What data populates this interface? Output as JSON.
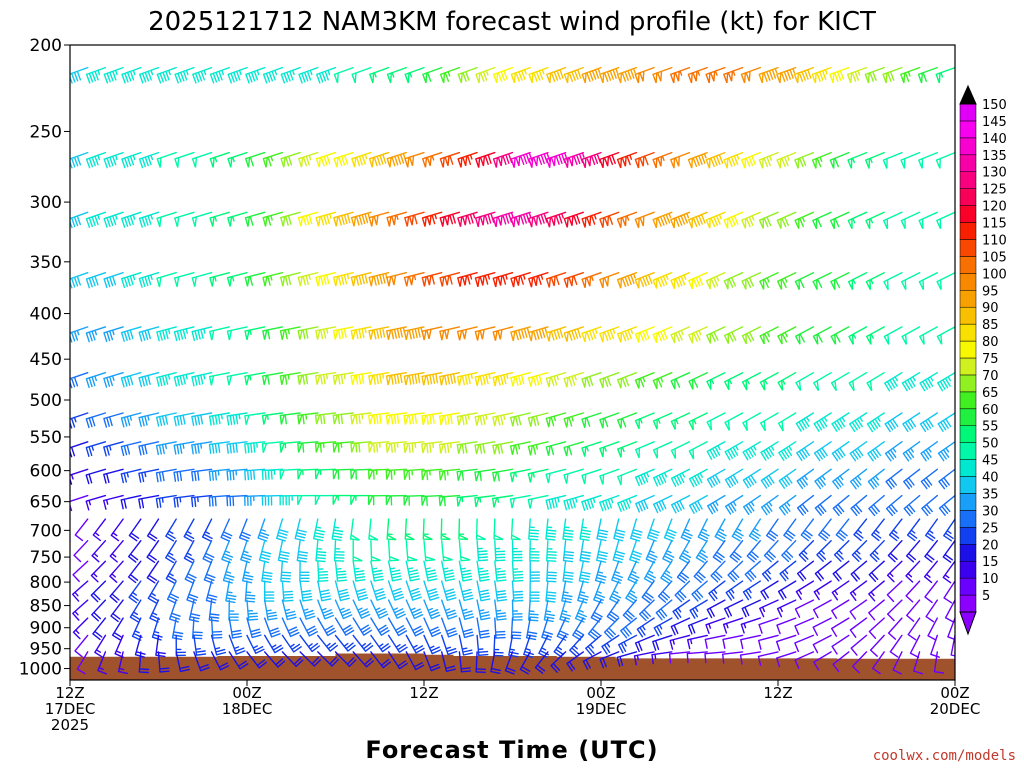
{
  "chart_data": {
    "type": "wind_profile",
    "title": "2025121712 NAM3KM forecast wind profile (kt) for KICT",
    "xlabel": "Forecast Time (UTC)",
    "credit": "coolwx.com/models",
    "yaxis": {
      "label": "",
      "ticks": [
        200,
        250,
        300,
        350,
        400,
        450,
        500,
        550,
        600,
        650,
        700,
        750,
        800,
        850,
        900,
        950,
        1000
      ],
      "range": [
        1030,
        200
      ],
      "scale": "log-pressure"
    },
    "xaxis": {
      "range_hours": [
        0,
        60
      ],
      "ticks": [
        {
          "hour": 0,
          "lines": [
            "12Z",
            "17DEC",
            "2025"
          ]
        },
        {
          "hour": 12,
          "lines": [
            "00Z",
            "18DEC"
          ]
        },
        {
          "hour": 24,
          "lines": [
            "12Z"
          ]
        },
        {
          "hour": 36,
          "lines": [
            "00Z",
            "19DEC"
          ]
        },
        {
          "hour": 48,
          "lines": [
            "12Z"
          ]
        },
        {
          "hour": 60,
          "lines": [
            "00Z",
            "20DEC"
          ]
        }
      ]
    },
    "colorbar": {
      "levels": [
        5,
        10,
        15,
        20,
        25,
        30,
        35,
        40,
        45,
        50,
        55,
        60,
        65,
        70,
        75,
        80,
        85,
        90,
        95,
        100,
        105,
        110,
        115,
        120,
        125,
        130,
        135,
        140,
        145,
        150
      ],
      "colors": [
        "#8c00ff",
        "#6a00ff",
        "#3c00f0",
        "#1c10e8",
        "#1040f0",
        "#1870f8",
        "#18a0f8",
        "#10c8f0",
        "#00e8d0",
        "#00f8a8",
        "#00f878",
        "#20f040",
        "#40f020",
        "#90f020",
        "#d0f020",
        "#f8f800",
        "#f8e000",
        "#f8c000",
        "#f8a000",
        "#f88800",
        "#f87000",
        "#f84800",
        "#f82000",
        "#f80028",
        "#f80058",
        "#f80080",
        "#f800a8",
        "#f800d0",
        "#f800f0",
        "#e000f8"
      ]
    },
    "terrain_color": "#a0522d",
    "surface_pressure_hpa": [
      {
        "hour": 0,
        "p": 970
      },
      {
        "hour": 10,
        "p": 968
      },
      {
        "hour": 18,
        "p": 962
      },
      {
        "hour": 24,
        "p": 965
      },
      {
        "hour": 26,
        "p": 968
      },
      {
        "hour": 33,
        "p": 970
      },
      {
        "hour": 37,
        "p": 974
      },
      {
        "hour": 48,
        "p": 974
      },
      {
        "hour": 52,
        "p": 975
      },
      {
        "hour": 60,
        "p": 968
      }
    ],
    "wind_time_step_hours": 1.2,
    "wind_levels_hpa": [
      212,
      264,
      308,
      360,
      414,
      466,
      517,
      557,
      598,
      640,
      680,
      719,
      758,
      798,
      838,
      878,
      918,
      958,
      998
    ],
    "wind_speed_kt_by_level": [
      [
        40,
        45,
        45,
        45,
        45,
        45,
        45,
        50,
        55,
        60,
        75,
        85,
        90,
        95,
        100,
        105,
        105,
        95,
        85,
        75,
        65,
        55
      ],
      [
        40,
        45,
        45,
        50,
        55,
        65,
        75,
        85,
        95,
        105,
        120,
        140,
        140,
        120,
        110,
        95,
        85,
        75,
        65,
        55,
        50,
        50
      ],
      [
        40,
        45,
        45,
        50,
        55,
        65,
        80,
        95,
        105,
        115,
        130,
        135,
        125,
        110,
        100,
        90,
        80,
        70,
        60,
        55,
        50,
        50
      ],
      [
        40,
        40,
        45,
        50,
        55,
        65,
        75,
        90,
        100,
        110,
        115,
        115,
        110,
        100,
        90,
        80,
        70,
        65,
        60,
        55,
        50,
        50
      ],
      [
        35,
        35,
        40,
        45,
        50,
        60,
        70,
        85,
        95,
        100,
        100,
        95,
        90,
        85,
        80,
        75,
        70,
        65,
        60,
        55,
        50,
        50
      ],
      [
        30,
        35,
        40,
        45,
        50,
        60,
        70,
        80,
        90,
        90,
        85,
        80,
        75,
        70,
        65,
        60,
        55,
        55,
        50,
        50,
        45,
        45
      ],
      [
        25,
        30,
        35,
        40,
        45,
        55,
        65,
        75,
        80,
        80,
        75,
        70,
        65,
        60,
        55,
        55,
        50,
        50,
        45,
        45,
        40,
        40
      ],
      [
        20,
        25,
        30,
        35,
        40,
        50,
        60,
        70,
        75,
        75,
        70,
        65,
        60,
        55,
        50,
        50,
        45,
        45,
        40,
        40,
        35,
        35
      ],
      [
        15,
        20,
        25,
        30,
        35,
        45,
        55,
        60,
        65,
        65,
        60,
        55,
        50,
        50,
        45,
        45,
        40,
        40,
        35,
        35,
        30,
        30
      ],
      [
        10,
        15,
        20,
        25,
        30,
        40,
        50,
        55,
        60,
        60,
        55,
        50,
        45,
        45,
        40,
        40,
        35,
        35,
        30,
        30,
        30,
        30
      ],
      [
        10,
        15,
        20,
        25,
        30,
        40,
        45,
        50,
        55,
        55,
        50,
        45,
        45,
        40,
        40,
        35,
        35,
        30,
        30,
        25,
        25,
        25
      ],
      [
        10,
        15,
        20,
        25,
        35,
        40,
        45,
        50,
        50,
        50,
        45,
        45,
        40,
        40,
        35,
        35,
        30,
        30,
        25,
        25,
        20,
        20
      ],
      [
        10,
        15,
        20,
        30,
        35,
        40,
        45,
        45,
        45,
        45,
        45,
        40,
        40,
        35,
        35,
        30,
        30,
        25,
        20,
        20,
        15,
        15
      ],
      [
        15,
        20,
        25,
        30,
        35,
        40,
        40,
        40,
        40,
        40,
        40,
        40,
        35,
        35,
        30,
        30,
        25,
        20,
        15,
        15,
        10,
        10
      ],
      [
        15,
        20,
        25,
        30,
        35,
        35,
        35,
        35,
        35,
        35,
        35,
        35,
        35,
        30,
        30,
        25,
        20,
        15,
        10,
        10,
        10,
        10
      ],
      [
        15,
        20,
        25,
        30,
        30,
        30,
        30,
        30,
        30,
        30,
        30,
        30,
        30,
        30,
        25,
        20,
        15,
        10,
        10,
        10,
        10,
        10
      ],
      [
        10,
        15,
        20,
        25,
        25,
        25,
        25,
        25,
        25,
        25,
        25,
        25,
        25,
        25,
        20,
        15,
        10,
        10,
        10,
        10,
        10,
        10
      ],
      [
        10,
        15,
        20,
        20,
        20,
        20,
        20,
        20,
        20,
        20,
        20,
        20,
        20,
        20,
        15,
        10,
        10,
        10,
        10,
        10,
        10,
        10
      ],
      [
        10,
        10,
        15,
        15,
        15,
        15,
        15,
        15,
        15,
        15,
        15,
        15,
        15,
        15,
        10,
        10,
        10,
        10,
        10,
        10,
        10,
        10
      ]
    ]
  }
}
